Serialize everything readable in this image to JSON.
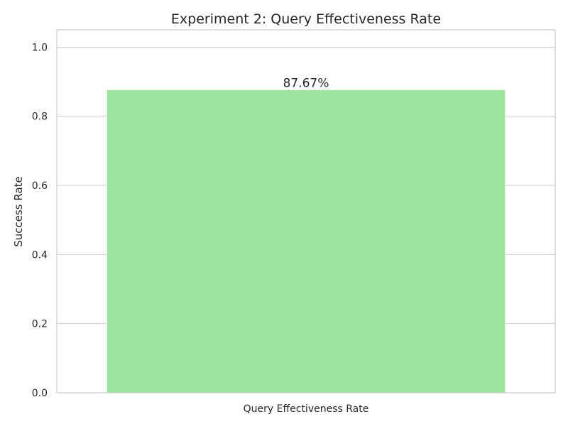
{
  "chart_data": {
    "type": "bar",
    "title": "Experiment 2: Query Effectiveness Rate",
    "xlabel": "",
    "ylabel": "Success Rate",
    "categories": [
      "Query Effectiveness Rate"
    ],
    "values": [
      0.8767
    ],
    "data_labels": [
      "87.67%"
    ],
    "ylim": [
      0,
      1.05
    ],
    "yticks": [
      0.0,
      0.2,
      0.4,
      0.6,
      0.8,
      1.0
    ],
    "ytick_labels": [
      "0.0",
      "0.2",
      "0.4",
      "0.6",
      "0.8",
      "1.0"
    ],
    "grid": "y",
    "legend": "none",
    "colors": {
      "bar": "#9de29d",
      "grid": "#cccccc",
      "axes_edge": "#cccccc",
      "text": "#262626"
    }
  }
}
